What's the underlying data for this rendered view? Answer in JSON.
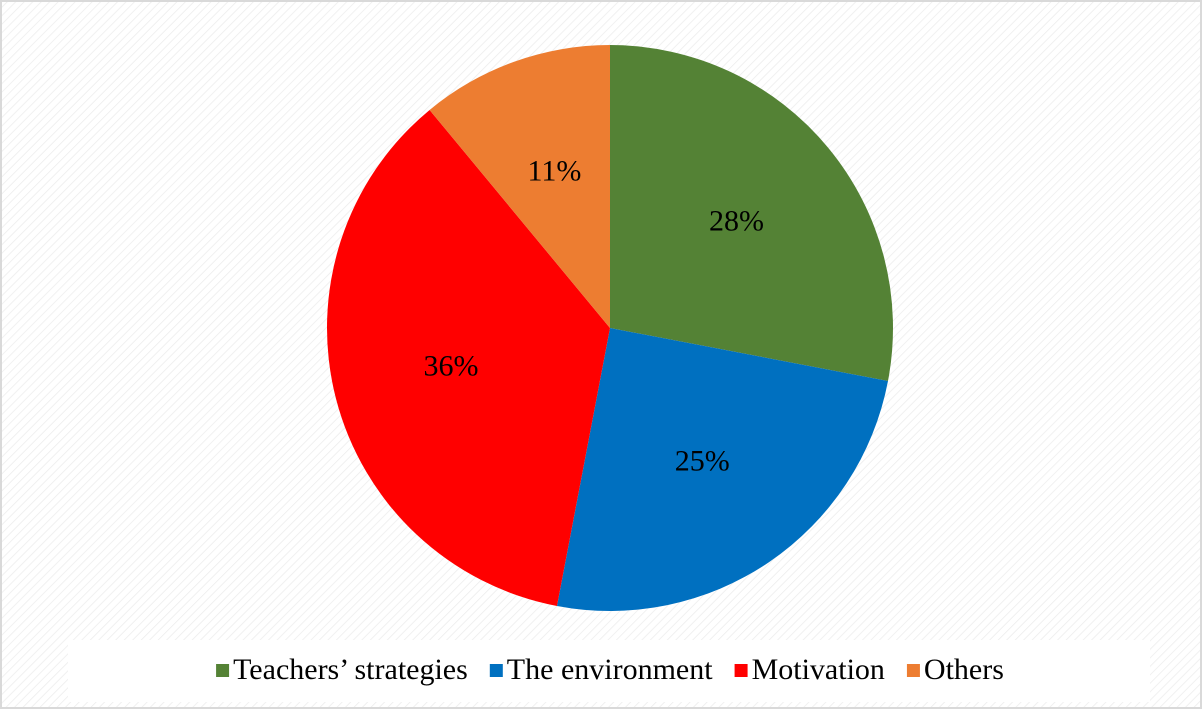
{
  "chart_data": {
    "type": "pie",
    "categories": [
      "Teachers’ strategies",
      "The environment",
      "Motivation",
      "Others"
    ],
    "values": [
      28,
      25,
      36,
      11
    ],
    "value_labels": [
      "28%",
      "25%",
      "36%",
      "11%"
    ],
    "colors": [
      "#548235",
      "#0070c0",
      "#ff0000",
      "#ed7d31"
    ],
    "legend": "bottom"
  }
}
